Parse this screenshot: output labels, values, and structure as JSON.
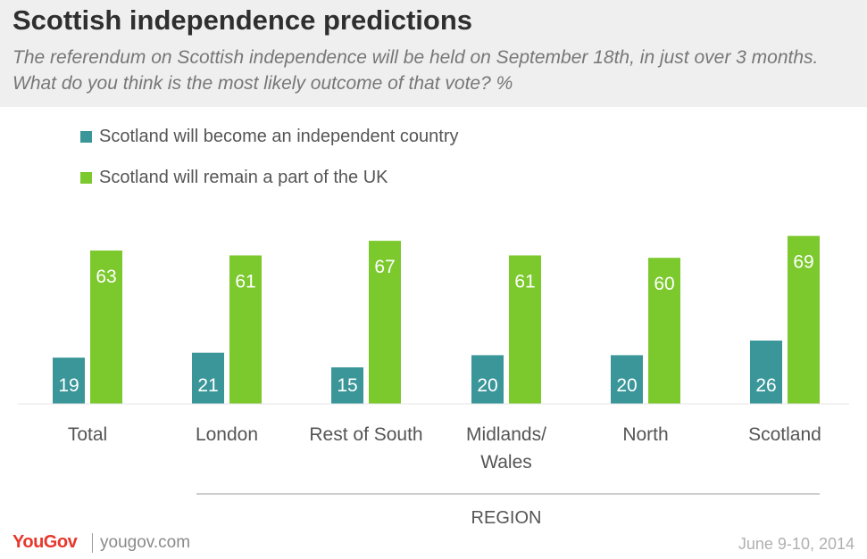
{
  "header": {
    "title": "Scottish independence predictions",
    "subtitle": "The referendum on Scottish independence will be held on September 18th, in just over 3 months. What do you think is the most likely outcome of that vote? %"
  },
  "footer": {
    "brand": "YouGov",
    "site": "yougov.com",
    "date": "June 9-10, 2014"
  },
  "chart_data": {
    "type": "bar",
    "title": "Scottish independence predictions",
    "xlabel": "REGION",
    "ylabel": "",
    "ylim": [
      0,
      80
    ],
    "grid": false,
    "legend_position": "top-left",
    "categories": [
      "Total",
      "London",
      "Rest of South",
      "Midlands/ Wales",
      "North",
      "Scotland"
    ],
    "category_lines": [
      [
        "Total"
      ],
      [
        "London"
      ],
      [
        "Rest of South"
      ],
      [
        "Midlands/",
        "Wales"
      ],
      [
        "North"
      ],
      [
        "Scotland"
      ]
    ],
    "series": [
      {
        "name": "Scotland will become an independent country",
        "color": "#3a9699",
        "values": [
          19,
          21,
          15,
          20,
          20,
          26
        ]
      },
      {
        "name": "Scotland will remain a part of the UK",
        "color": "#7bc92d",
        "values": [
          63,
          61,
          67,
          61,
          60,
          69
        ]
      }
    ]
  }
}
